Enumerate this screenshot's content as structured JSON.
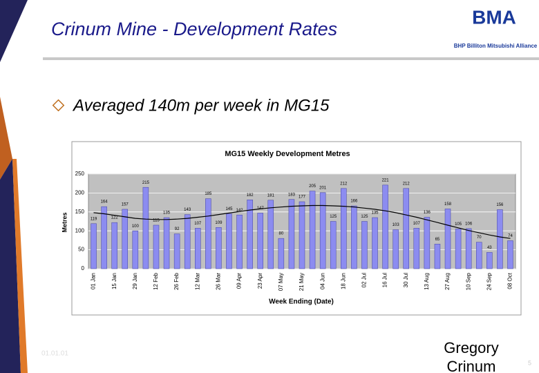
{
  "slide": {
    "title": "Crinum Mine - Development Rates",
    "bullet": "Averaged 140m per week in MG15",
    "logo": "BMA",
    "logo_sub": "BHP Billiton Mitsubishi Alliance",
    "date": "01.01.01",
    "footer_name": "Gregory Crinum",
    "page": "5"
  },
  "chart_data": {
    "type": "bar",
    "title": "MG15 Weekly Development Metres",
    "x_label": "Week Ending (Date)",
    "y_label": "Metres",
    "categories": [
      "01 Jan",
      null,
      "15 Jan",
      null,
      "29 Jan",
      null,
      "12 Feb",
      null,
      "26 Feb",
      null,
      "12 Mar",
      null,
      "26 Mar",
      null,
      "09 Apr",
      null,
      "23 Apr",
      null,
      "07 May",
      null,
      "21 May",
      null,
      "04 Jun",
      null,
      "18 Jun",
      null,
      "02 Jul",
      null,
      "16 Jul",
      null,
      "30 Jul",
      null,
      "13 Aug",
      null,
      "27 Aug",
      null,
      "10 Sep",
      null,
      "24 Sep",
      null,
      "08 Oct"
    ],
    "values": [
      119,
      164,
      122,
      157,
      100,
      215,
      115,
      135,
      92,
      143,
      107,
      185,
      109,
      145,
      142,
      182,
      147,
      181,
      80,
      183,
      177,
      205,
      201,
      125,
      212,
      166,
      125,
      135,
      221,
      103,
      212,
      107,
      136,
      65,
      158,
      105,
      106,
      70,
      43,
      156,
      74
    ],
    "trend": [
      148,
      145,
      141,
      137,
      133,
      131,
      130,
      130,
      131,
      133,
      136,
      139,
      143,
      147,
      151,
      155,
      158,
      161,
      163,
      165,
      166,
      167,
      167,
      166,
      165,
      163,
      160,
      157,
      153,
      148,
      142,
      136,
      129,
      122,
      115,
      108,
      101,
      95,
      89,
      84,
      80
    ],
    "color": "#8c8cf0",
    "trend_color": "#000000",
    "plot_background": "#c0c0c0",
    "ylim": [
      0,
      250
    ],
    "yticks": [
      0,
      50,
      100,
      150,
      200,
      250
    ],
    "grid": true
  }
}
